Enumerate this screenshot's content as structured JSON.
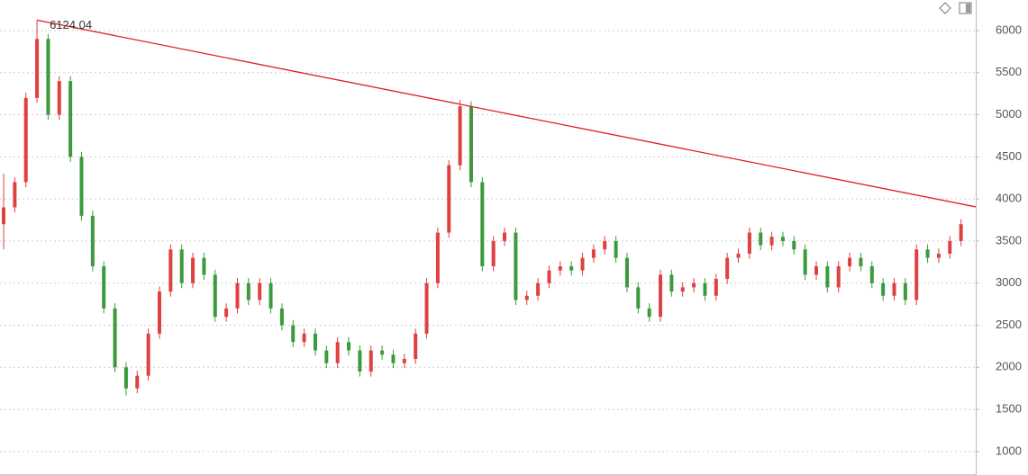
{
  "chart_data": {
    "type": "candlestick",
    "open": [
      3700,
      3900,
      4200,
      5200,
      5900,
      5000,
      5400,
      4500,
      3800,
      3200,
      2700,
      2000,
      1750,
      1900,
      2400,
      2900,
      3400,
      3000,
      3300,
      3100,
      2600,
      2700,
      3000,
      2800,
      3000,
      2700,
      2500,
      2300,
      2400,
      2200,
      2050,
      2300,
      2200,
      1950,
      2200,
      2150,
      2050,
      2100,
      2400,
      3000,
      3600,
      4400,
      5100,
      4200,
      3200,
      3500,
      3600,
      2800,
      2850,
      3000,
      3150,
      3200,
      3150,
      3300,
      3400,
      3500,
      3300,
      2950,
      2700,
      2600,
      3100,
      2900,
      2950,
      3000,
      2850,
      3050,
      3300,
      3350,
      3600,
      3450,
      3550,
      3500,
      3400,
      3100,
      3200,
      2950,
      3200,
      3300,
      3200,
      3000,
      2850,
      3000,
      2800,
      3400,
      3300,
      3350,
      3500
    ],
    "high": [
      4300,
      4260,
      5260,
      6124.04,
      5960,
      5460,
      5460,
      4560,
      3860,
      3260,
      2760,
      2060,
      1960,
      2460,
      2960,
      3460,
      3460,
      3360,
      3360,
      3160,
      2760,
      3060,
      3060,
      3060,
      3060,
      2760,
      2560,
      2460,
      2460,
      2260,
      2360,
      2360,
      2260,
      2260,
      2260,
      2210,
      2160,
      2460,
      3060,
      3660,
      4460,
      5178,
      5160,
      4260,
      3560,
      3660,
      3660,
      2910,
      3060,
      3210,
      3260,
      3260,
      3360,
      3460,
      3560,
      3560,
      3360,
      3010,
      2760,
      3160,
      3160,
      3010,
      3060,
      3060,
      3110,
      3360,
      3410,
      3660,
      3660,
      3610,
      3610,
      3560,
      3460,
      3260,
      3260,
      3260,
      3360,
      3360,
      3260,
      3060,
      3060,
      3060,
      3460,
      3460,
      3410,
      3560,
      3760
    ],
    "low": [
      3400,
      3840,
      4140,
      5140,
      4940,
      4940,
      4440,
      3740,
      3140,
      2640,
      1940,
      1664,
      1690,
      1840,
      2340,
      2840,
      2940,
      2940,
      3040,
      2540,
      2540,
      2640,
      2740,
      2740,
      2640,
      2440,
      2240,
      2240,
      2140,
      1990,
      1990,
      2140,
      1890,
      1890,
      2090,
      1990,
      1990,
      2040,
      2340,
      2940,
      3540,
      4340,
      4140,
      3140,
      3140,
      3440,
      2740,
      2740,
      2790,
      2940,
      3090,
      3090,
      3090,
      3240,
      3340,
      3240,
      2890,
      2640,
      2540,
      2540,
      2840,
      2840,
      2890,
      2790,
      2790,
      2990,
      3240,
      3290,
      3390,
      3390,
      3440,
      3340,
      3040,
      3040,
      2890,
      2890,
      3140,
      3140,
      2940,
      2790,
      2790,
      2740,
      2740,
      3240,
      3240,
      3290,
      3440
    ],
    "close": [
      3900,
      4200,
      5200,
      5900,
      5000,
      5400,
      4500,
      3800,
      3200,
      2700,
      2000,
      1750,
      1900,
      2400,
      2900,
      3400,
      3000,
      3300,
      3100,
      2600,
      2700,
      3000,
      2800,
      3000,
      2700,
      2500,
      2300,
      2400,
      2200,
      2050,
      2300,
      2200,
      1950,
      2200,
      2150,
      2050,
      2100,
      2400,
      3000,
      3600,
      4400,
      5100,
      4200,
      3200,
      3500,
      3600,
      2800,
      2850,
      3000,
      3150,
      3200,
      3150,
      3300,
      3400,
      3500,
      3300,
      2950,
      2700,
      2600,
      3100,
      2900,
      2950,
      3000,
      2850,
      3050,
      3300,
      3350,
      3600,
      3450,
      3550,
      3500,
      3400,
      3100,
      3200,
      2950,
      3200,
      3300,
      3200,
      3000,
      2850,
      3000,
      2800,
      3400,
      3300,
      3350,
      3500,
      3700
    ],
    "up_color": "#e04040",
    "down_color": "#3c9a3c",
    "ylim": [
      721,
      6363
    ],
    "yticks": [
      1000,
      1500,
      2000,
      2500,
      3000,
      3500,
      4000,
      4500,
      5000,
      5500,
      6000
    ],
    "grid": true,
    "trendline": {
      "values": [
        6124.04,
        3906
      ],
      "color": "#e02020"
    }
  }
}
